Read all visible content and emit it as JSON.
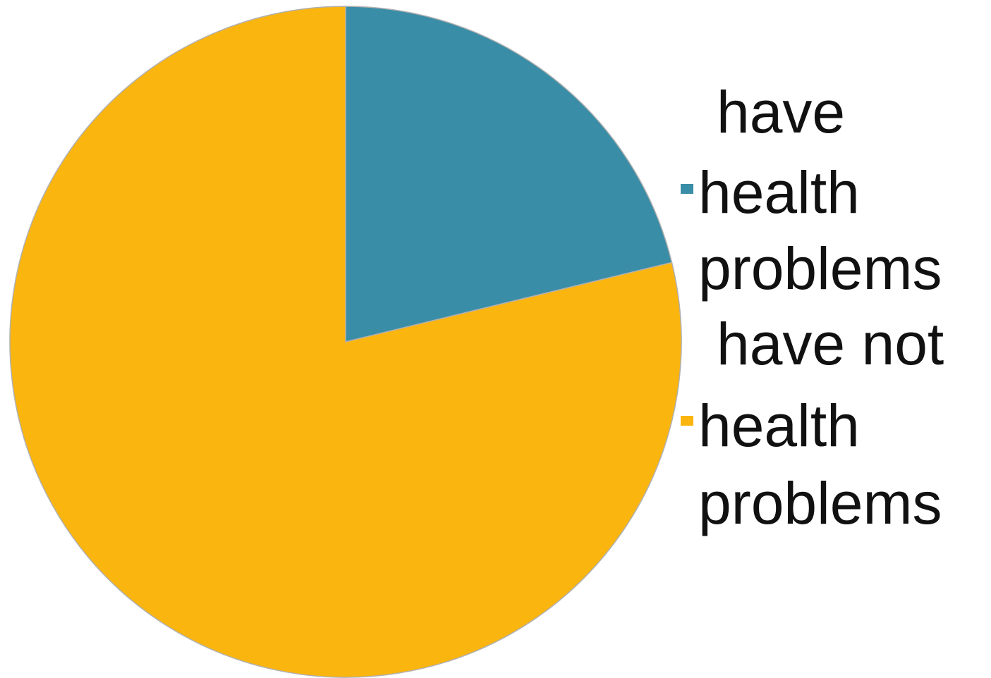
{
  "chart_data": {
    "type": "pie",
    "title": "",
    "start_angle_deg": 0,
    "direction": "clockwise",
    "legend_placement": "right",
    "slices": [
      {
        "label": "have health problems",
        "value": 21.2,
        "color": "#3A8DA6"
      },
      {
        "label": "have not health problems",
        "value": 78.8,
        "color": "#FBB50F"
      }
    ],
    "legend": [
      {
        "lines": [
          "have",
          "health",
          "problems"
        ],
        "color": "#3A8DA6"
      },
      {
        "lines": [
          "have not",
          "health",
          "problems"
        ],
        "color": "#FBB50F"
      }
    ]
  }
}
